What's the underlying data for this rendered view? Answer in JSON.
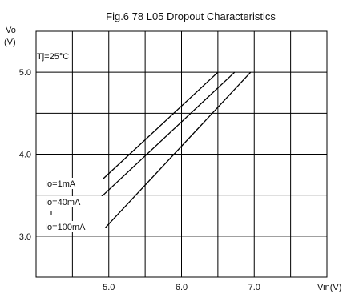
{
  "chart_data": {
    "type": "line",
    "title": "Fig.6 78 L05 Dropout Characteristics",
    "ylabel_line1": "Vo",
    "ylabel_line2": "(V)",
    "xlabel": "Vin(V)",
    "annotation": "Tj=25°C",
    "xlim": [
      4.0,
      8.0
    ],
    "ylim": [
      2.5,
      5.5
    ],
    "x_ticks": [
      {
        "value": 5.0,
        "label": "5.0"
      },
      {
        "value": 6.0,
        "label": "6.0"
      },
      {
        "value": 7.0,
        "label": "7.0"
      }
    ],
    "y_ticks": [
      {
        "value": 3.0,
        "label": "3.0"
      },
      {
        "value": 4.0,
        "label": "4.0"
      },
      {
        "value": 5.0,
        "label": "5.0"
      }
    ],
    "grid": true,
    "series": [
      {
        "name": "Io=1mA",
        "x": [
          4.85,
          6.5
        ],
        "y": [
          3.64,
          5.0
        ]
      },
      {
        "name": "Io=40mA",
        "x": [
          4.85,
          6.73
        ],
        "y": [
          3.44,
          5.0
        ]
      },
      {
        "name": "Io=100mA",
        "x": [
          4.95,
          6.95
        ],
        "y": [
          3.1,
          5.0
        ]
      }
    ],
    "line_color": "#000000",
    "grid_color": "#000000"
  }
}
